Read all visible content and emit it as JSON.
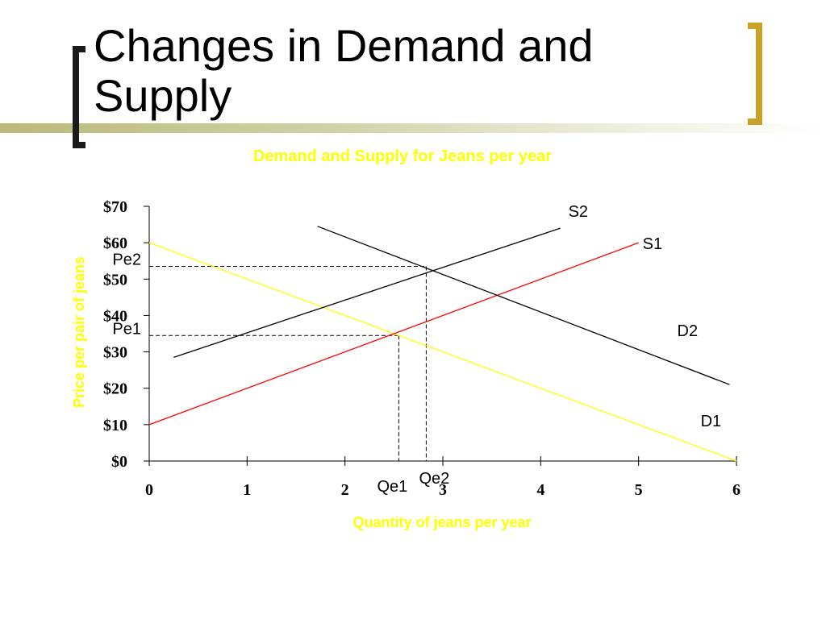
{
  "slide": {
    "title_line1": "Changes in Demand and",
    "title_line2": "Supply"
  },
  "colors": {
    "chart_text": "#ffff00",
    "bracket_right": "#c9a227",
    "bracket_left": "#1a1a1a"
  },
  "chart_data": {
    "type": "line",
    "title": "Demand and Supply for Jeans per year",
    "xlabel": "Quantity of jeans per year",
    "ylabel": "Price per pair of jeans",
    "xlim": [
      0,
      6
    ],
    "ylim": [
      0,
      70
    ],
    "x_ticks": [
      "0",
      "1",
      "2",
      "3",
      "4",
      "5",
      "6"
    ],
    "y_ticks": [
      "$0",
      "$10",
      "$20",
      "$30",
      "$40",
      "$50",
      "$60",
      "$70"
    ],
    "grid": false,
    "series": [
      {
        "name": "D1",
        "color": "#ffff00",
        "points": [
          [
            0,
            60
          ],
          [
            6,
            0
          ]
        ]
      },
      {
        "name": "S1",
        "color": "#ff0000",
        "points": [
          [
            0,
            10
          ],
          [
            5,
            60
          ]
        ]
      },
      {
        "name": "S2",
        "color": "#000000",
        "points": [
          [
            0.25,
            28.5
          ],
          [
            4.2,
            64
          ]
        ]
      },
      {
        "name": "D2",
        "color": "#000000",
        "points": [
          [
            1.72,
            64.5
          ],
          [
            5.93,
            21
          ]
        ]
      }
    ],
    "equilibria": [
      {
        "price_label": "Pe1",
        "quantity_label": "Qe1",
        "x": 2.55,
        "y": 34.5
      },
      {
        "price_label": "Pe2",
        "quantity_label": "Qe2",
        "x": 2.83,
        "y": 53.5
      }
    ],
    "curve_labels": [
      "S2",
      "S1",
      "D2",
      "D1"
    ]
  }
}
